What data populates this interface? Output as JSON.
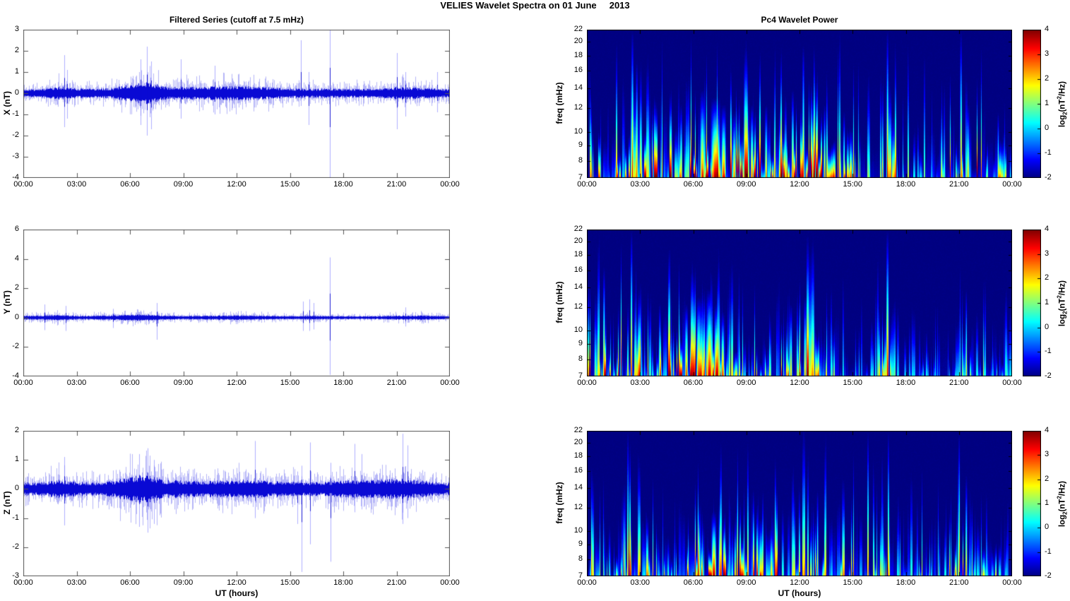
{
  "figure": {
    "title": "VELIES Wavelet Spectra on 01 June     2013"
  },
  "left_column": {
    "title": "Filtered Series (cutoff at 7.5 mHz)",
    "xlabel": "UT (hours)"
  },
  "right_column": {
    "title": "Pc4 Wavelet Power",
    "xlabel": "UT (hours)"
  },
  "colorbar": {
    "ticks": [
      4,
      3,
      2,
      1,
      0,
      -1,
      -2
    ],
    "value_range": [
      -2,
      4
    ],
    "colormap": "jet",
    "label_parts": {
      "prefix": "log",
      "sub": "2",
      "mid": "(nT",
      "sup": "2",
      "suffix": "/Hz)"
    }
  },
  "chart_data": [
    {
      "id": "x-filtered-series",
      "type": "line",
      "ylabel": "X (nT)",
      "ylim": [
        -4,
        3
      ],
      "yticks": [
        3,
        2,
        1,
        0,
        -1,
        -2,
        -3,
        -4
      ],
      "xlim_hours": [
        0,
        24
      ],
      "xticks": [
        "00:00",
        "03:00",
        "06:00",
        "09:00",
        "12:00",
        "15:00",
        "18:00",
        "21:00",
        "00:00"
      ],
      "line_color": "#0000D2",
      "hourly_amp_envelope_nT": [
        0.18,
        0.18,
        0.3,
        0.22,
        0.2,
        0.25,
        0.4,
        0.5,
        0.3,
        0.28,
        0.28,
        0.32,
        0.33,
        0.3,
        0.27,
        0.22,
        0.2,
        0.22,
        0.2,
        0.2,
        0.2,
        0.28,
        0.26,
        0.22,
        0.18
      ],
      "spikes_t_lo_hi": [
        [
          2.3,
          -1.6,
          1.8
        ],
        [
          2.45,
          -1.2,
          1.1
        ],
        [
          6.6,
          -1.5,
          1.6
        ],
        [
          6.95,
          -2.0,
          2.2
        ],
        [
          7.2,
          -1.7,
          1.5
        ],
        [
          8.85,
          -1.2,
          1.6
        ],
        [
          10.75,
          -1.0,
          1.3
        ],
        [
          15.6,
          -0.6,
          2.5
        ],
        [
          16.05,
          -1.5,
          1.0
        ],
        [
          17.25,
          -4.0,
          3.0
        ],
        [
          21.0,
          -1.7,
          1.9
        ],
        [
          21.5,
          -1.1,
          1.0
        ],
        [
          23.3,
          -0.9,
          1.0
        ]
      ]
    },
    {
      "id": "y-filtered-series",
      "type": "line",
      "ylabel": "Y (nT)",
      "ylim": [
        -4,
        6
      ],
      "yticks": [
        6,
        4,
        2,
        0,
        -2,
        -4
      ],
      "xlim_hours": [
        0,
        24
      ],
      "xticks": [
        "00:00",
        "03:00",
        "06:00",
        "09:00",
        "12:00",
        "15:00",
        "18:00",
        "21:00",
        "00:00"
      ],
      "line_color": "#0000D2",
      "hourly_amp_envelope_nT": [
        0.12,
        0.15,
        0.18,
        0.13,
        0.12,
        0.16,
        0.2,
        0.22,
        0.13,
        0.12,
        0.12,
        0.14,
        0.16,
        0.14,
        0.12,
        0.1,
        0.12,
        0.12,
        0.1,
        0.1,
        0.1,
        0.13,
        0.15,
        0.12,
        0.1
      ],
      "spikes_t_lo_hi": [
        [
          1.2,
          -0.85,
          0.9
        ],
        [
          2.4,
          -0.9,
          0.8
        ],
        [
          5.05,
          -0.7,
          0.6
        ],
        [
          7.5,
          -1.5,
          1.0
        ],
        [
          15.75,
          -0.9,
          1.1
        ],
        [
          16.1,
          -0.9,
          1.25
        ],
        [
          16.35,
          -0.8,
          1.0
        ],
        [
          17.25,
          -3.9,
          4.1
        ],
        [
          21.5,
          -0.6,
          0.7
        ]
      ]
    },
    {
      "id": "z-filtered-series",
      "type": "line",
      "ylabel": "Z (nT)",
      "ylim": [
        -3,
        2
      ],
      "yticks": [
        2,
        1,
        0,
        -1,
        -2,
        -3
      ],
      "xlim_hours": [
        0,
        24
      ],
      "xticks": [
        "00:00",
        "03:00",
        "06:00",
        "09:00",
        "12:00",
        "15:00",
        "18:00",
        "21:00",
        "00:00"
      ],
      "line_color": "#0000D2",
      "hourly_amp_envelope_nT": [
        0.22,
        0.22,
        0.3,
        0.24,
        0.22,
        0.26,
        0.42,
        0.48,
        0.3,
        0.28,
        0.26,
        0.28,
        0.3,
        0.3,
        0.26,
        0.24,
        0.22,
        0.24,
        0.28,
        0.3,
        0.3,
        0.34,
        0.3,
        0.24,
        0.2
      ],
      "spikes_t_lo_hi": [
        [
          2.3,
          -1.25,
          1.1
        ],
        [
          6.5,
          -1.3,
          1.2
        ],
        [
          7.0,
          -1.5,
          1.4
        ],
        [
          7.35,
          -1.2,
          1.0
        ],
        [
          13.05,
          -1.0,
          1.65
        ],
        [
          15.4,
          -1.2,
          0.6
        ],
        [
          15.67,
          -2.85,
          0.8
        ],
        [
          16.15,
          -1.9,
          1.6
        ],
        [
          17.27,
          -2.5,
          0.9
        ],
        [
          18.65,
          -0.8,
          1.55
        ],
        [
          19.05,
          -0.7,
          1.2
        ],
        [
          21.35,
          -1.2,
          1.9
        ],
        [
          21.6,
          -1.0,
          1.5
        ]
      ]
    },
    {
      "id": "x-wavelet-power",
      "type": "heatmap",
      "ylabel": "freq (mHz)",
      "freq_range_mHz": [
        7,
        22
      ],
      "yscale": "log",
      "freq_ticks": [
        22,
        20,
        18,
        16,
        14,
        12,
        10,
        9,
        8,
        7
      ],
      "xlim_hours": [
        0,
        24
      ],
      "xticks": [
        "00:00",
        "03:00",
        "06:00",
        "09:00",
        "12:00",
        "15:00",
        "18:00",
        "21:00",
        "00:00"
      ],
      "value_scale": "log2(nT^2/Hz)",
      "value_range": [
        -2,
        4
      ],
      "colormap": "jet",
      "hourly_activity": [
        0.5,
        0.45,
        0.7,
        0.55,
        0.5,
        0.55,
        0.8,
        0.95,
        0.65,
        0.7,
        0.65,
        0.7,
        0.75,
        0.7,
        0.5,
        0.38,
        0.33,
        0.5,
        0.28,
        0.28,
        0.33,
        0.55,
        0.5,
        0.45,
        0.4
      ],
      "events_t_v_h_w": [
        [
          2.55,
          3.6,
          1.0,
          0.07
        ],
        [
          2.8,
          3.0,
          0.8,
          0.06
        ],
        [
          5.3,
          2.6,
          0.5,
          0.08
        ],
        [
          6.5,
          3.2,
          0.6,
          0.15
        ],
        [
          7.25,
          4.0,
          0.55,
          0.3
        ],
        [
          7.7,
          3.4,
          0.5,
          0.15
        ],
        [
          8.3,
          2.8,
          0.45,
          0.1
        ],
        [
          9.3,
          3.0,
          0.5,
          0.1
        ],
        [
          10.1,
          2.8,
          0.5,
          0.08
        ],
        [
          11.6,
          3.2,
          0.6,
          0.08
        ],
        [
          12.2,
          3.4,
          0.9,
          0.06
        ],
        [
          12.75,
          3.0,
          0.55,
          0.06
        ],
        [
          13.4,
          3.0,
          0.5,
          0.06
        ],
        [
          14.5,
          2.6,
          0.45,
          0.06
        ],
        [
          16.95,
          3.8,
          1.0,
          0.06
        ],
        [
          21.1,
          3.4,
          1.0,
          0.06
        ],
        [
          21.5,
          2.6,
          0.5,
          0.06
        ],
        [
          23.2,
          2.4,
          0.45,
          0.05
        ]
      ]
    },
    {
      "id": "y-wavelet-power",
      "type": "heatmap",
      "ylabel": "freq (mHz)",
      "freq_range_mHz": [
        7,
        22
      ],
      "yscale": "log",
      "freq_ticks": [
        22,
        20,
        18,
        16,
        14,
        12,
        10,
        9,
        8,
        7
      ],
      "xlim_hours": [
        0,
        24
      ],
      "xticks": [
        "00:00",
        "03:00",
        "06:00",
        "09:00",
        "12:00",
        "15:00",
        "18:00",
        "21:00",
        "00:00"
      ],
      "value_scale": "log2(nT^2/Hz)",
      "value_range": [
        -2,
        4
      ],
      "colormap": "jet",
      "hourly_activity": [
        0.45,
        0.5,
        0.55,
        0.4,
        0.42,
        0.6,
        0.75,
        0.85,
        0.4,
        0.32,
        0.38,
        0.48,
        0.52,
        0.42,
        0.32,
        0.22,
        0.25,
        0.45,
        0.22,
        0.22,
        0.2,
        0.32,
        0.28,
        0.28,
        0.22
      ],
      "events_t_v_h_w": [
        [
          0.95,
          3.4,
          0.75,
          0.06
        ],
        [
          2.5,
          3.6,
          1.0,
          0.06
        ],
        [
          4.1,
          2.6,
          0.5,
          0.06
        ],
        [
          5.6,
          3.2,
          0.5,
          0.1
        ],
        [
          6.3,
          3.4,
          0.55,
          0.15
        ],
        [
          6.9,
          3.8,
          0.6,
          0.2
        ],
        [
          7.3,
          4.0,
          0.5,
          0.15
        ],
        [
          7.65,
          3.4,
          0.45,
          0.1
        ],
        [
          11.5,
          2.4,
          0.5,
          0.08
        ],
        [
          12.3,
          2.6,
          0.55,
          0.08
        ],
        [
          16.95,
          3.8,
          1.0,
          0.08
        ],
        [
          21.4,
          2.4,
          0.6,
          0.05
        ]
      ]
    },
    {
      "id": "z-wavelet-power",
      "type": "heatmap",
      "ylabel": "freq (mHz)",
      "freq_range_mHz": [
        7,
        22
      ],
      "yscale": "log",
      "freq_ticks": [
        22,
        20,
        18,
        16,
        14,
        12,
        10,
        9,
        8,
        7
      ],
      "xlim_hours": [
        0,
        24
      ],
      "xticks": [
        "00:00",
        "03:00",
        "06:00",
        "09:00",
        "12:00",
        "15:00",
        "18:00",
        "21:00",
        "00:00"
      ],
      "value_scale": "log2(nT^2/Hz)",
      "value_range": [
        -2,
        4
      ],
      "colormap": "jet",
      "hourly_activity": [
        0.38,
        0.33,
        0.5,
        0.38,
        0.33,
        0.42,
        0.65,
        0.8,
        0.48,
        0.52,
        0.48,
        0.42,
        0.48,
        0.52,
        0.38,
        0.42,
        0.28,
        0.38,
        0.28,
        0.3,
        0.3,
        0.5,
        0.35,
        0.32,
        0.28
      ],
      "events_t_v_h_w": [
        [
          2.3,
          3.2,
          1.0,
          0.05
        ],
        [
          6.3,
          2.8,
          0.5,
          0.1
        ],
        [
          7.15,
          4.0,
          0.45,
          0.15
        ],
        [
          7.5,
          3.0,
          0.5,
          0.1
        ],
        [
          9.8,
          2.6,
          0.4,
          0.15
        ],
        [
          10.4,
          2.4,
          0.35,
          0.1
        ],
        [
          13.0,
          2.6,
          0.6,
          0.05
        ],
        [
          15.85,
          3.2,
          1.0,
          0.05
        ],
        [
          17.0,
          3.2,
          1.0,
          0.05
        ],
        [
          21.0,
          3.2,
          1.0,
          0.05
        ],
        [
          21.4,
          2.8,
          0.7,
          0.06
        ]
      ]
    }
  ]
}
